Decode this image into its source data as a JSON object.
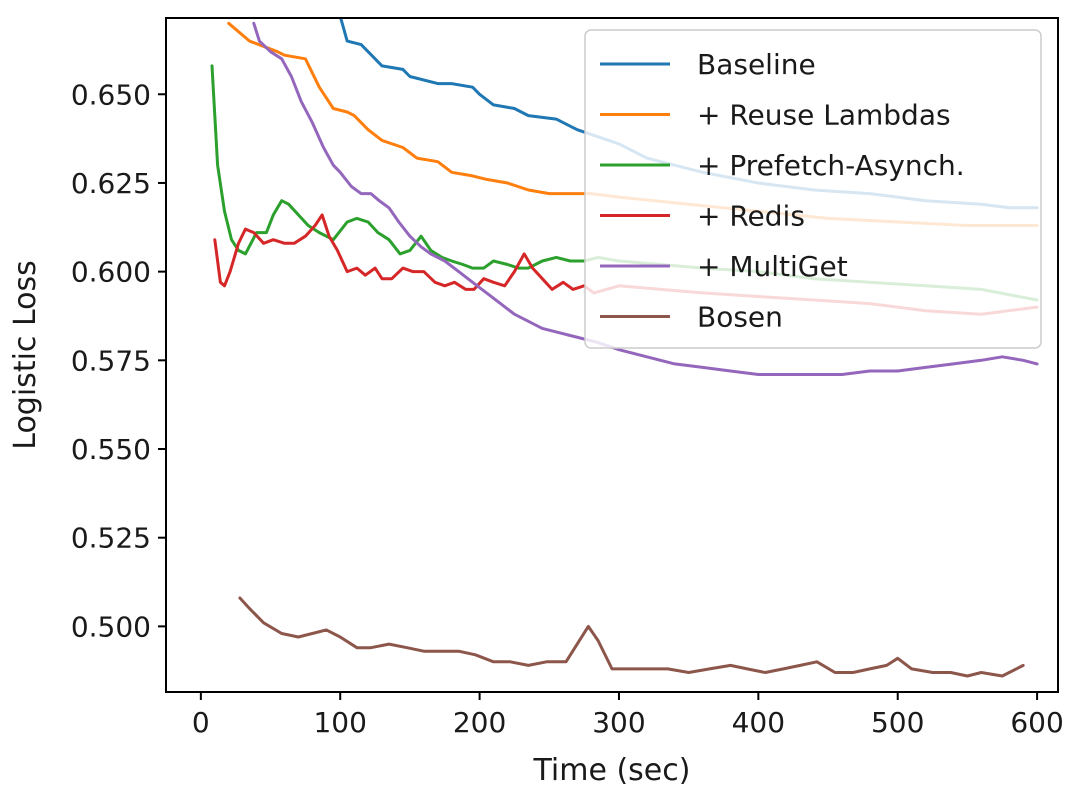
{
  "chart_data": {
    "type": "line",
    "title": "",
    "xlabel": "Time (sec)",
    "ylabel": "Logistic Loss",
    "xlim": [
      -25,
      615
    ],
    "ylim": [
      0.4815,
      0.6715
    ],
    "xticks": [
      0,
      100,
      200,
      300,
      400,
      500,
      600
    ],
    "xtick_labels": [
      "0",
      "100",
      "200",
      "300",
      "400",
      "500",
      "600"
    ],
    "yticks": [
      0.5,
      0.525,
      0.55,
      0.575,
      0.6,
      0.625,
      0.65
    ],
    "ytick_labels": [
      "0.500",
      "0.525",
      "0.550",
      "0.575",
      "0.600",
      "0.625",
      "0.650"
    ],
    "grid": false,
    "legend_position": "top-right",
    "series": [
      {
        "name": "Baseline",
        "color": "#1f77b4",
        "x": [
          100,
          105,
          115,
          125,
          130,
          145,
          150,
          170,
          180,
          195,
          200,
          210,
          225,
          235,
          255,
          265,
          270,
          285,
          300,
          320,
          360,
          400,
          440,
          480,
          520,
          560,
          580,
          600
        ],
        "y": [
          0.672,
          0.665,
          0.664,
          0.66,
          0.658,
          0.657,
          0.655,
          0.653,
          0.653,
          0.652,
          0.65,
          0.647,
          0.646,
          0.644,
          0.643,
          0.641,
          0.64,
          0.638,
          0.636,
          0.632,
          0.628,
          0.625,
          0.623,
          0.622,
          0.62,
          0.619,
          0.618,
          0.618
        ]
      },
      {
        "name": "+ Reuse Lambdas",
        "color": "#ff7f0e",
        "x": [
          20,
          35,
          55,
          60,
          75,
          85,
          95,
          105,
          110,
          120,
          130,
          145,
          155,
          170,
          180,
          195,
          205,
          220,
          235,
          250,
          265,
          280,
          300,
          350,
          400,
          450,
          500,
          550,
          600
        ],
        "y": [
          0.67,
          0.665,
          0.662,
          0.661,
          0.66,
          0.652,
          0.646,
          0.645,
          0.644,
          0.64,
          0.637,
          0.635,
          0.632,
          0.631,
          0.628,
          0.627,
          0.626,
          0.625,
          0.623,
          0.622,
          0.622,
          0.622,
          0.621,
          0.619,
          0.617,
          0.615,
          0.614,
          0.613,
          0.613
        ]
      },
      {
        "name": "+ Prefetch-Asynch.",
        "color": "#2ca02c",
        "x": [
          8,
          12,
          17,
          22,
          27,
          32,
          40,
          47,
          52,
          58,
          63,
          70,
          77,
          85,
          95,
          105,
          112,
          120,
          127,
          135,
          143,
          150,
          158,
          165,
          173,
          180,
          188,
          195,
          203,
          210,
          220,
          228,
          235,
          245,
          255,
          265,
          275,
          285,
          300,
          330,
          360,
          400,
          440,
          480,
          520,
          560,
          600
        ],
        "y": [
          0.658,
          0.63,
          0.617,
          0.609,
          0.606,
          0.605,
          0.611,
          0.611,
          0.616,
          0.62,
          0.619,
          0.616,
          0.613,
          0.611,
          0.609,
          0.614,
          0.615,
          0.614,
          0.611,
          0.609,
          0.605,
          0.606,
          0.61,
          0.606,
          0.604,
          0.603,
          0.602,
          0.601,
          0.601,
          0.603,
          0.602,
          0.601,
          0.601,
          0.603,
          0.604,
          0.603,
          0.603,
          0.604,
          0.603,
          0.602,
          0.601,
          0.6,
          0.598,
          0.597,
          0.596,
          0.595,
          0.592
        ]
      },
      {
        "name": "+ Redis",
        "color": "#d62728",
        "x": [
          10,
          14,
          17,
          21,
          27,
          32,
          38,
          45,
          52,
          60,
          67,
          75,
          82,
          87,
          92,
          98,
          105,
          112,
          118,
          125,
          130,
          137,
          145,
          152,
          160,
          168,
          175,
          182,
          190,
          196,
          203,
          210,
          218,
          225,
          232,
          238,
          245,
          252,
          260,
          267,
          275,
          282,
          300,
          330,
          360,
          400,
          440,
          480,
          520,
          560,
          600
        ],
        "y": [
          0.609,
          0.597,
          0.596,
          0.6,
          0.608,
          0.612,
          0.611,
          0.608,
          0.609,
          0.608,
          0.608,
          0.61,
          0.613,
          0.616,
          0.61,
          0.606,
          0.6,
          0.601,
          0.599,
          0.601,
          0.598,
          0.598,
          0.601,
          0.6,
          0.6,
          0.597,
          0.596,
          0.597,
          0.595,
          0.595,
          0.598,
          0.597,
          0.596,
          0.6,
          0.605,
          0.601,
          0.598,
          0.595,
          0.597,
          0.595,
          0.596,
          0.594,
          0.596,
          0.595,
          0.594,
          0.593,
          0.592,
          0.591,
          0.589,
          0.588,
          0.59
        ]
      },
      {
        "name": "+ MultiGet",
        "color": "#9467bd",
        "x": [
          38,
          42,
          50,
          58,
          65,
          72,
          80,
          88,
          95,
          100,
          108,
          115,
          122,
          128,
          135,
          142,
          150,
          158,
          165,
          175,
          185,
          195,
          205,
          215,
          225,
          235,
          245,
          255,
          265,
          275,
          285,
          300,
          320,
          340,
          360,
          380,
          400,
          420,
          440,
          460,
          480,
          500,
          520,
          540,
          560,
          575,
          590,
          600
        ],
        "y": [
          0.67,
          0.665,
          0.662,
          0.66,
          0.655,
          0.648,
          0.642,
          0.635,
          0.63,
          0.628,
          0.624,
          0.622,
          0.622,
          0.62,
          0.618,
          0.614,
          0.61,
          0.607,
          0.605,
          0.603,
          0.6,
          0.597,
          0.594,
          0.591,
          0.588,
          0.586,
          0.584,
          0.583,
          0.582,
          0.581,
          0.58,
          0.578,
          0.576,
          0.574,
          0.573,
          0.572,
          0.571,
          0.571,
          0.571,
          0.571,
          0.572,
          0.572,
          0.573,
          0.574,
          0.575,
          0.576,
          0.575,
          0.574
        ]
      },
      {
        "name": "Bosen",
        "color": "#8c564b",
        "x": [
          28,
          35,
          45,
          58,
          70,
          80,
          90,
          100,
          112,
          122,
          135,
          148,
          160,
          172,
          185,
          197,
          210,
          222,
          235,
          248,
          262,
          270,
          278,
          285,
          295,
          310,
          322,
          335,
          350,
          365,
          380,
          392,
          405,
          418,
          430,
          442,
          455,
          468,
          480,
          492,
          500,
          510,
          525,
          538,
          550,
          560,
          575,
          590
        ],
        "y": [
          0.508,
          0.505,
          0.501,
          0.498,
          0.497,
          0.498,
          0.499,
          0.497,
          0.494,
          0.494,
          0.495,
          0.494,
          0.493,
          0.493,
          0.493,
          0.492,
          0.49,
          0.49,
          0.489,
          0.49,
          0.49,
          0.495,
          0.5,
          0.496,
          0.488,
          0.488,
          0.488,
          0.488,
          0.487,
          0.488,
          0.489,
          0.488,
          0.487,
          0.488,
          0.489,
          0.49,
          0.487,
          0.487,
          0.488,
          0.489,
          0.491,
          0.488,
          0.487,
          0.487,
          0.486,
          0.487,
          0.486,
          0.489
        ]
      }
    ]
  }
}
